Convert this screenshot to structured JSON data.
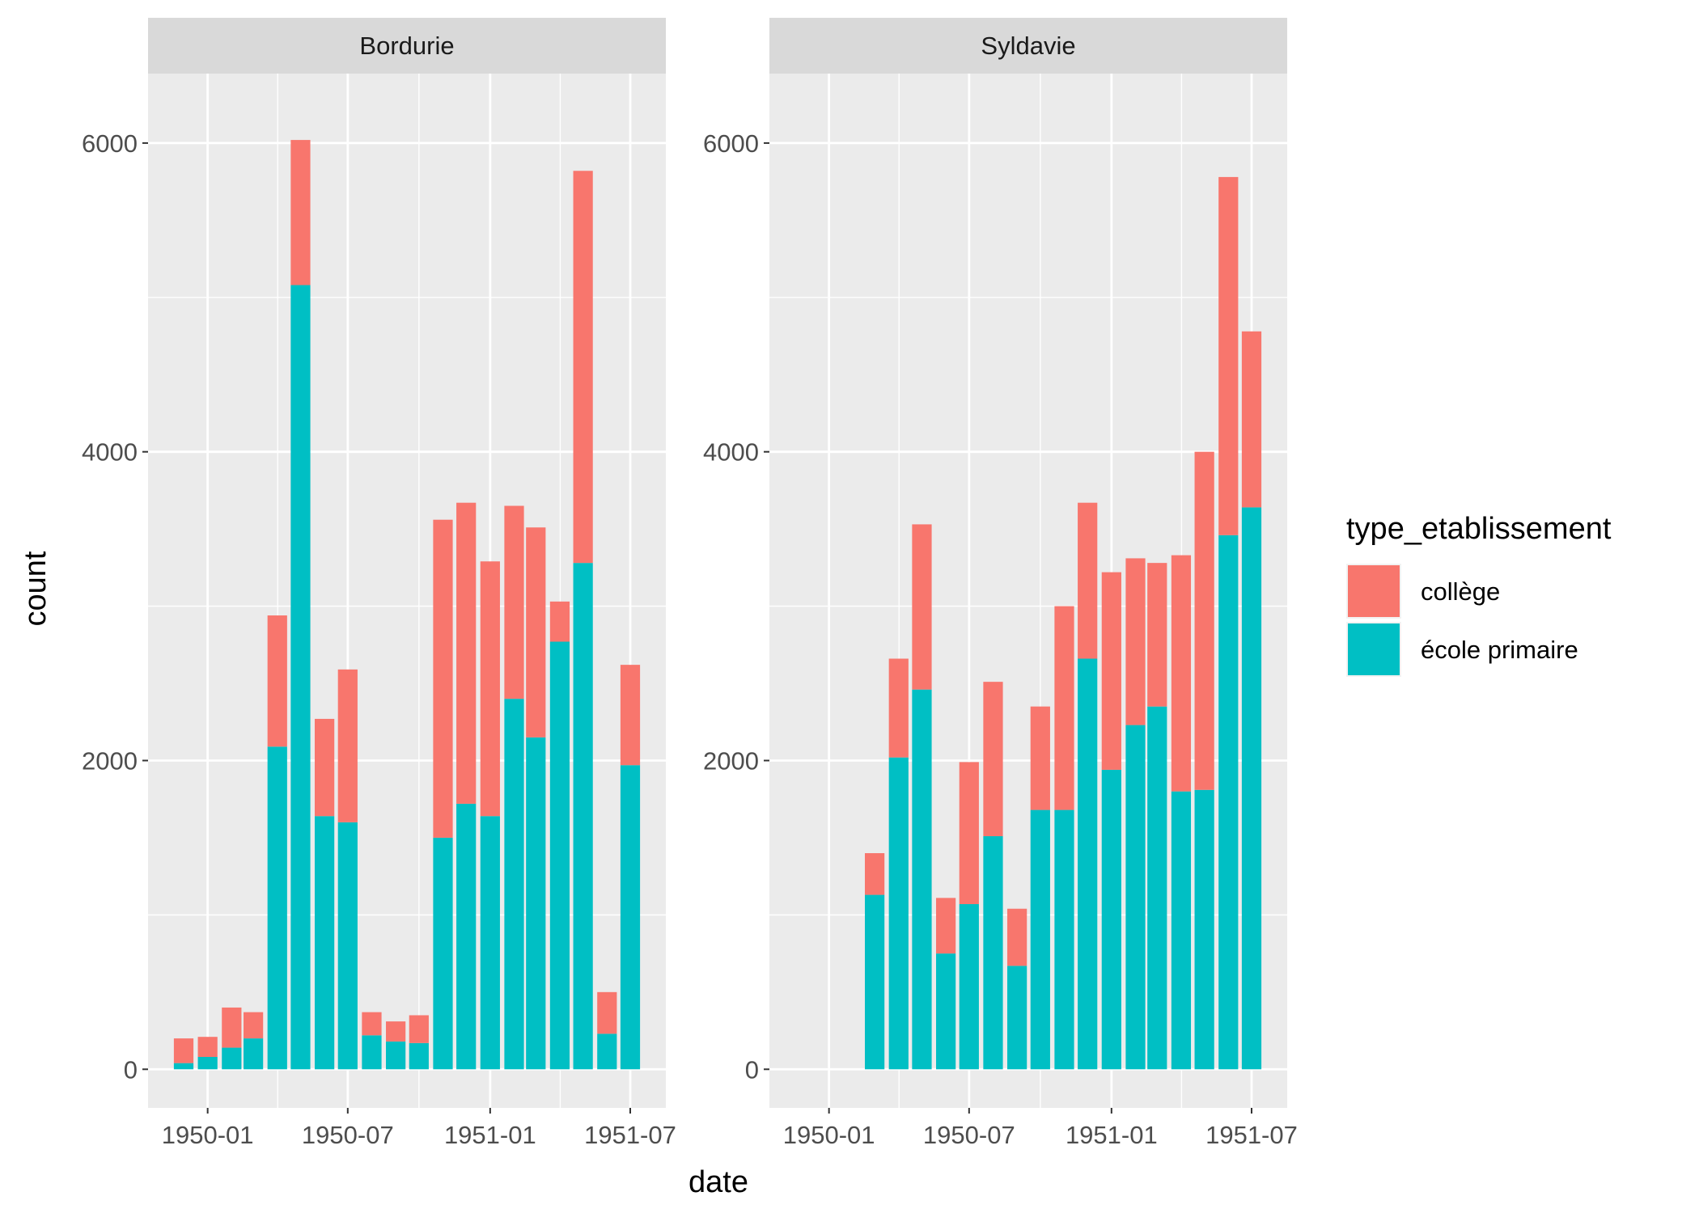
{
  "chart_data": {
    "type": "bar",
    "stacked": true,
    "xlabel": "date",
    "ylabel": "count",
    "ylim": [
      -250,
      6450
    ],
    "y_ticks": [
      0,
      2000,
      4000,
      6000
    ],
    "x_ticks": [
      "1950-01",
      "1950-07",
      "1951-01",
      "1951-07"
    ],
    "x_tick_dates": [
      "1950-01-01",
      "1950-07-01",
      "1951-01-01",
      "1951-07-01"
    ],
    "x_range": [
      "1949-10-16",
      "1951-08-16"
    ],
    "grid": true,
    "legend": {
      "title": "type_etablissement",
      "position": "right",
      "entries": [
        "collège",
        "école primaire"
      ]
    },
    "colors": {
      "collège": "#F8766D",
      "école primaire": "#00BFC4",
      "panel_background": "#EBEBEB",
      "strip_background": "#D9D9D9",
      "grid": "#FFFFFF"
    },
    "panels": [
      {
        "name": "Bordurie",
        "dates": [
          "1949-12-01",
          "1950-01-01",
          "1950-02-01",
          "1950-03-01",
          "1950-04-01",
          "1950-05-01",
          "1950-06-01",
          "1950-07-01",
          "1950-08-01",
          "1950-09-01",
          "1950-10-01",
          "1950-11-01",
          "1950-12-01",
          "1951-01-01",
          "1951-02-01",
          "1951-03-01",
          "1951-04-01",
          "1951-05-01",
          "1951-06-01",
          "1951-07-01"
        ],
        "series": [
          {
            "name": "école primaire",
            "values": [
              40,
              80,
              140,
              200,
              2090,
              5080,
              1640,
              1600,
              220,
              180,
              170,
              1500,
              1720,
              1640,
              2400,
              2150,
              2770,
              3280,
              230,
              1970
            ]
          },
          {
            "name": "collège",
            "values": [
              160,
              130,
              260,
              170,
              850,
              940,
              630,
              990,
              150,
              130,
              180,
              2060,
              1950,
              1650,
              1250,
              1360,
              260,
              2540,
              270,
              650
            ]
          }
        ]
      },
      {
        "name": "Syldavie",
        "dates": [
          "1950-03-01",
          "1950-04-01",
          "1950-05-01",
          "1950-06-01",
          "1950-07-01",
          "1950-08-01",
          "1950-09-01",
          "1950-10-01",
          "1950-11-01",
          "1950-12-01",
          "1951-01-01",
          "1951-02-01",
          "1951-03-01",
          "1951-04-01",
          "1951-05-01",
          "1951-06-01",
          "1951-07-01"
        ],
        "series": [
          {
            "name": "école primaire",
            "values": [
              1130,
              2020,
              2460,
              750,
              1070,
              1510,
              670,
              1680,
              1680,
              2660,
              1940,
              2230,
              2350,
              1800,
              1810,
              3460,
              3640
            ]
          },
          {
            "name": "collège",
            "values": [
              270,
              640,
              1070,
              360,
              920,
              1000,
              370,
              670,
              1320,
              1010,
              1280,
              1080,
              930,
              1530,
              2190,
              2320,
              1140
            ]
          }
        ]
      }
    ]
  }
}
